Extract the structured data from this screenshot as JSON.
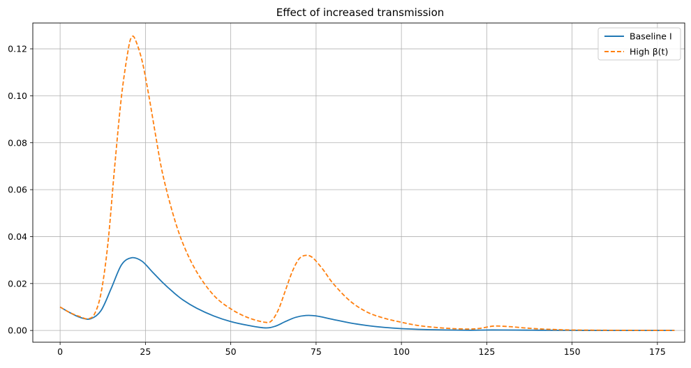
{
  "chart_data": {
    "type": "line",
    "title": "Effect of increased transmission",
    "xlabel": "",
    "ylabel": "",
    "xlim": [
      -8,
      183
    ],
    "ylim": [
      -0.005,
      0.131
    ],
    "x_ticks": [
      0,
      25,
      50,
      75,
      100,
      125,
      150,
      175
    ],
    "x_tick_labels": [
      "0",
      "25",
      "50",
      "75",
      "100",
      "125",
      "150",
      "175"
    ],
    "y_ticks": [
      0.0,
      0.02,
      0.04,
      0.06,
      0.08,
      0.1,
      0.12
    ],
    "y_tick_labels": [
      "0.00",
      "0.02",
      "0.04",
      "0.06",
      "0.08",
      "0.10",
      "0.12"
    ],
    "grid": true,
    "legend_position": "top-right",
    "series": [
      {
        "name": "Baseline I",
        "color": "#1f77b4",
        "style": "solid",
        "points": [
          [
            0,
            0.01
          ],
          [
            3,
            0.0075
          ],
          [
            6,
            0.0055
          ],
          [
            9,
            0.005
          ],
          [
            12,
            0.0085
          ],
          [
            15,
            0.018
          ],
          [
            18,
            0.028
          ],
          [
            21,
            0.031
          ],
          [
            24,
            0.0295
          ],
          [
            27,
            0.025
          ],
          [
            30,
            0.0205
          ],
          [
            33,
            0.0165
          ],
          [
            36,
            0.013
          ],
          [
            40,
            0.0095
          ],
          [
            45,
            0.0062
          ],
          [
            50,
            0.0038
          ],
          [
            55,
            0.0022
          ],
          [
            60,
            0.0011
          ],
          [
            63,
            0.0018
          ],
          [
            66,
            0.0038
          ],
          [
            69,
            0.0056
          ],
          [
            72,
            0.0064
          ],
          [
            75,
            0.0062
          ],
          [
            80,
            0.0047
          ],
          [
            85,
            0.0032
          ],
          [
            90,
            0.0021
          ],
          [
            95,
            0.0013
          ],
          [
            100,
            0.0008
          ],
          [
            110,
            0.0003
          ],
          [
            120,
            0.0001
          ],
          [
            125,
            0.0002
          ],
          [
            130,
            0.0002
          ],
          [
            140,
            0.0001
          ],
          [
            150,
            4e-05
          ],
          [
            160,
            2e-05
          ],
          [
            170,
            1e-05
          ],
          [
            180,
            0.0
          ]
        ]
      },
      {
        "name": "High β(t)",
        "color": "#ff7f0e",
        "style": "dashed",
        "points": [
          [
            0,
            0.01
          ],
          [
            3,
            0.0075
          ],
          [
            6,
            0.0058
          ],
          [
            8,
            0.005
          ],
          [
            10,
            0.0068
          ],
          [
            12,
            0.016
          ],
          [
            14,
            0.037
          ],
          [
            16,
            0.07
          ],
          [
            18,
            0.1
          ],
          [
            20,
            0.12
          ],
          [
            21,
            0.125
          ],
          [
            22,
            0.124
          ],
          [
            24,
            0.115
          ],
          [
            26,
            0.1
          ],
          [
            28,
            0.083
          ],
          [
            30,
            0.067
          ],
          [
            33,
            0.05
          ],
          [
            36,
            0.037
          ],
          [
            40,
            0.025
          ],
          [
            45,
            0.015
          ],
          [
            50,
            0.0092
          ],
          [
            55,
            0.0055
          ],
          [
            60,
            0.0035
          ],
          [
            62,
            0.0042
          ],
          [
            64,
            0.009
          ],
          [
            66,
            0.017
          ],
          [
            68,
            0.025
          ],
          [
            70,
            0.0305
          ],
          [
            72,
            0.032
          ],
          [
            74,
            0.031
          ],
          [
            77,
            0.026
          ],
          [
            80,
            0.02
          ],
          [
            85,
            0.0125
          ],
          [
            90,
            0.0078
          ],
          [
            95,
            0.0052
          ],
          [
            100,
            0.0035
          ],
          [
            105,
            0.0021
          ],
          [
            110,
            0.0013
          ],
          [
            115,
            0.0008
          ],
          [
            120,
            0.0006
          ],
          [
            123,
            0.0009
          ],
          [
            126,
            0.0017
          ],
          [
            128,
            0.0019
          ],
          [
            132,
            0.0016
          ],
          [
            136,
            0.0011
          ],
          [
            140,
            0.0007
          ],
          [
            145,
            0.0004
          ],
          [
            150,
            0.0002
          ],
          [
            160,
            0.0001
          ],
          [
            170,
            5e-05
          ],
          [
            180,
            2e-05
          ]
        ]
      }
    ]
  }
}
